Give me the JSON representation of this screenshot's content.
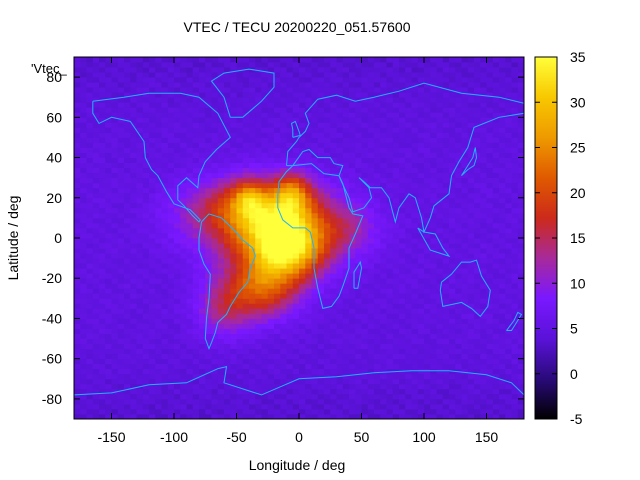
{
  "chart_data": {
    "type": "heatmap",
    "title": "VTEC / TECU 20200220_051.57600",
    "xlabel": "Longitude / deg",
    "ylabel": "Latitude / deg",
    "xlim": [
      -180,
      180
    ],
    "ylim": [
      -90,
      90
    ],
    "x_ticks": [
      -150,
      -100,
      -50,
      0,
      50,
      100,
      150
    ],
    "y_ticks": [
      -80,
      -60,
      -40,
      -20,
      0,
      20,
      40,
      60,
      80
    ],
    "y_tick_labels": [
      "-80",
      "-60",
      "-40",
      "-20",
      "0",
      "20",
      "40",
      "60",
      "80"
    ],
    "colorbar": {
      "range": [
        -5,
        35
      ],
      "ticks": [
        -5,
        0,
        5,
        10,
        15,
        20,
        25,
        30,
        35
      ],
      "colormap": [
        "#000000",
        "#2a0a7a",
        "#5a12d8",
        "#7a18ff",
        "#a82a9a",
        "#cc2a1a",
        "#e05a00",
        "#ee9a00",
        "#f8c800",
        "#ffff3a"
      ]
    },
    "legend_key": "'Vtec_",
    "annotations": [
      "Vtec_"
    ],
    "background_value": 5,
    "anomalies": [
      {
        "lon": -10,
        "lat": -5,
        "peak": 30,
        "sigma_lon": 28,
        "sigma_lat": 15
      },
      {
        "lon": -20,
        "lat": 5,
        "peak": 25,
        "sigma_lon": 50,
        "sigma_lat": 20
      },
      {
        "lon": -40,
        "lat": 15,
        "peak": 18,
        "sigma_lon": 45,
        "sigma_lat": 14
      },
      {
        "lon": -30,
        "lat": -25,
        "peak": 22,
        "sigma_lon": 28,
        "sigma_lat": 14
      },
      {
        "lon": -60,
        "lat": -35,
        "peak": 14,
        "sigma_lon": 22,
        "sigma_lat": 14
      },
      {
        "lon": -5,
        "lat": 22,
        "peak": 20,
        "sigma_lon": 14,
        "sigma_lat": 10
      },
      {
        "lon": -40,
        "lat": 20,
        "peak": 16,
        "sigma_lon": 12,
        "sigma_lat": 8
      },
      {
        "lon": 40,
        "lat": 5,
        "peak": 10,
        "sigma_lon": 25,
        "sigma_lat": 12
      },
      {
        "lon": -100,
        "lat": 10,
        "peak": 6,
        "sigma_lon": 25,
        "sigma_lat": 14
      }
    ],
    "coastline_color": "#1eb4ff",
    "frame_color": "#000000"
  }
}
